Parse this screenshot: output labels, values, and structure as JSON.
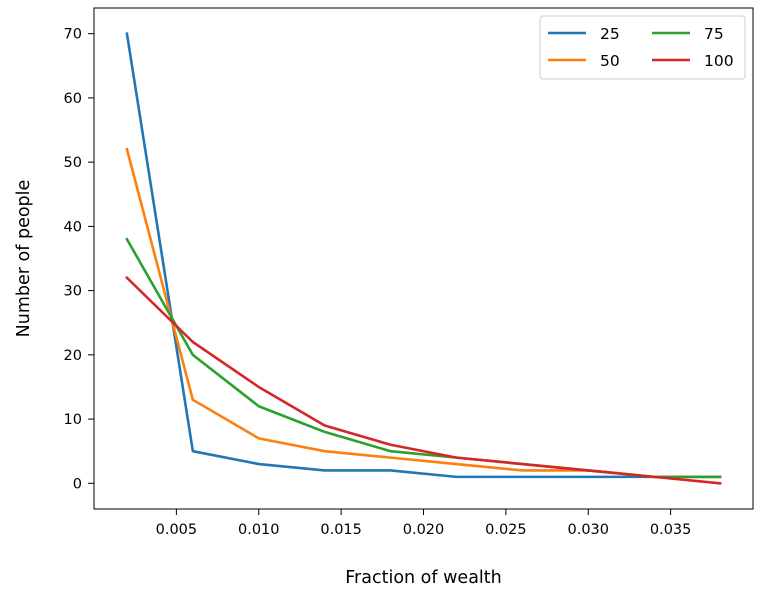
{
  "chart_data": {
    "type": "line",
    "title": "",
    "xlabel": "Fraction of wealth",
    "ylabel": "Number of people",
    "xlim": [
      0.0,
      0.04
    ],
    "ylim": [
      -4,
      74
    ],
    "grid": false,
    "legend": {
      "placement": "top-right",
      "columns": 2
    },
    "x": [
      0.002,
      0.006,
      0.01,
      0.014,
      0.018,
      0.022,
      0.026,
      0.03,
      0.034,
      0.038
    ],
    "xticks": [
      {
        "value": 0.005,
        "label": "0.005"
      },
      {
        "value": 0.01,
        "label": "0.010"
      },
      {
        "value": 0.015,
        "label": "0.015"
      },
      {
        "value": 0.02,
        "label": "0.020"
      },
      {
        "value": 0.025,
        "label": "0.025"
      },
      {
        "value": 0.03,
        "label": "0.030"
      },
      {
        "value": 0.035,
        "label": "0.035"
      }
    ],
    "yticks": [
      {
        "value": 0,
        "label": "0"
      },
      {
        "value": 10,
        "label": "10"
      },
      {
        "value": 20,
        "label": "20"
      },
      {
        "value": 30,
        "label": "30"
      },
      {
        "value": 40,
        "label": "40"
      },
      {
        "value": 50,
        "label": "50"
      },
      {
        "value": 60,
        "label": "60"
      },
      {
        "value": 70,
        "label": "70"
      }
    ],
    "series": [
      {
        "name": "25",
        "color": "#1f77b4",
        "values": [
          70,
          5,
          3,
          2,
          2,
          1,
          1,
          1,
          1,
          1
        ]
      },
      {
        "name": "50",
        "color": "#ff7f0e",
        "values": [
          52,
          13,
          7,
          5,
          4,
          3,
          2,
          2,
          1,
          1
        ]
      },
      {
        "name": "75",
        "color": "#2ca02c",
        "values": [
          38,
          20,
          12,
          8,
          5,
          4,
          3,
          2,
          1,
          1
        ]
      },
      {
        "name": "100",
        "color": "#d62728",
        "values": [
          32,
          22,
          15,
          9,
          6,
          4,
          3,
          2,
          1,
          0
        ]
      }
    ]
  }
}
